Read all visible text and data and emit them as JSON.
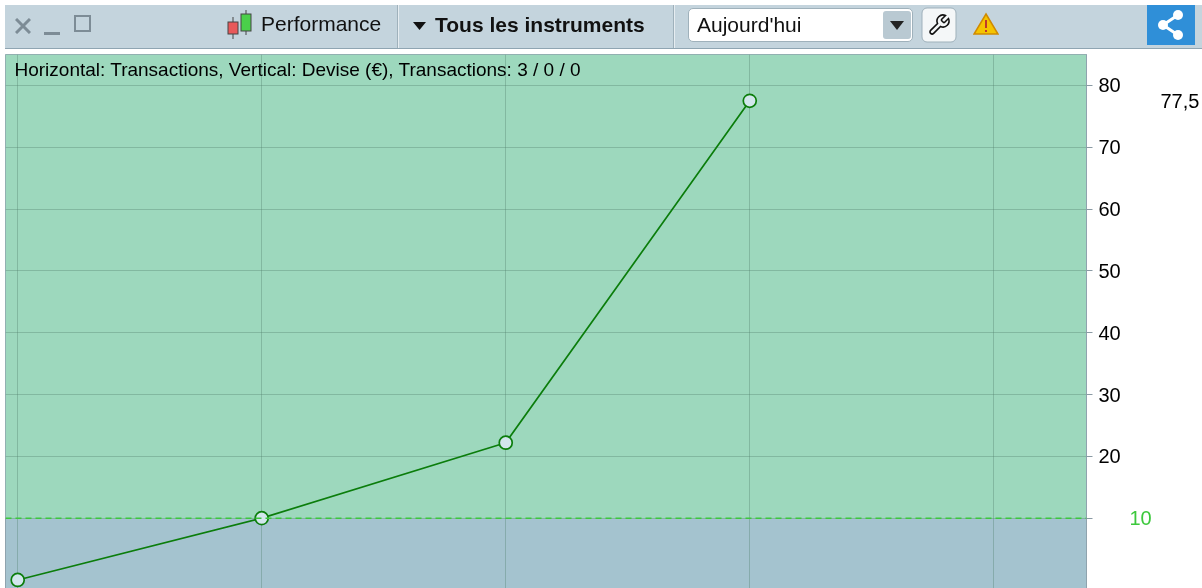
{
  "chart_data": {
    "type": "line",
    "title": "Horizontal: Transactions, Vertical: Devise (€), Transactions: 3 / 0 / 0",
    "categories": [
      null,
      null,
      null,
      null
    ],
    "series": [
      {
        "color": "#0b7d0b",
        "values": [
          0,
          10,
          22.2,
          77.5
        ]
      }
    ],
    "ylim": [
      -3,
      85
    ],
    "yticks": [
      {
        "value": 10,
        "label": null
      },
      20,
      30,
      40,
      50,
      60,
      70,
      80
    ],
    "grid": true,
    "tick_labels": "y",
    "marker": "circle",
    "line_style": "solid",
    "ref_lines": [
      {
        "axis": "y",
        "value": 10,
        "label": "10",
        "color": "#3cc83c",
        "line_style": "dashed"
      }
    ],
    "bands": [
      {
        "axis": "y",
        "from": 10,
        "to": 85,
        "color": "#9dd8bd"
      }
    ],
    "annotations": [
      "77,5",
      "Performance",
      "Tous les instruments",
      "Aujourd'hui"
    ]
  }
}
